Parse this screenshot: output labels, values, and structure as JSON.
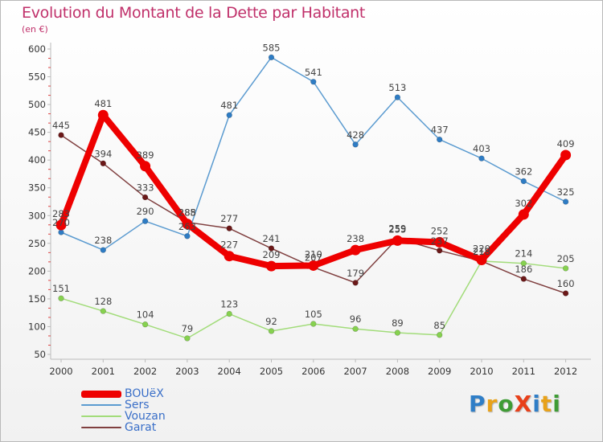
{
  "title": "Evolution du Montant de la Dette par Habitant",
  "subtitle": "(en €)",
  "logo": {
    "text": "ProXiti",
    "letter_colors": [
      "#2f7ec7",
      "#e8a21a",
      "#3f9c35",
      "#e8401a",
      "#2f7ec7",
      "#e8a21a",
      "#3f9c35"
    ]
  },
  "chart_data": {
    "type": "line",
    "x": [
      "2000",
      "2001",
      "2002",
      "2003",
      "2004",
      "2005",
      "2006",
      "2007",
      "2008",
      "2009",
      "2010",
      "2011",
      "2012"
    ],
    "ylim": [
      50,
      600
    ],
    "yticks": [
      50,
      100,
      150,
      200,
      250,
      300,
      350,
      400,
      450,
      500,
      550,
      600
    ],
    "grid": false,
    "legend_position": "bottom-left",
    "series": [
      {
        "name": "Sers",
        "color": "#5b9bd0",
        "marker": "#2e7cc4",
        "values": [
          270,
          238,
          290,
          263,
          481,
          585,
          541,
          428,
          513,
          437,
          403,
          362,
          325
        ]
      },
      {
        "name": "Vouzan",
        "color": "#a2dc7a",
        "marker": "#86d14f",
        "values": [
          151,
          128,
          104,
          79,
          123,
          92,
          105,
          96,
          89,
          85,
          218,
          214,
          205
        ]
      },
      {
        "name": "Garat",
        "color": "#804040",
        "marker": "#6b1818",
        "values": [
          445,
          394,
          333,
          288,
          277,
          241,
          207,
          179,
          259,
          237,
          218,
          186,
          160
        ]
      },
      {
        "name": "BOUëX",
        "color": "#ee0000",
        "marker": "#ee0000",
        "values": [
          283,
          481,
          389,
          285,
          227,
          209,
          210,
          238,
          255,
          252,
          220,
          302,
          409
        ]
      }
    ],
    "legend_order": [
      "BOUëX",
      "Sers",
      "Vouzan",
      "Garat"
    ]
  }
}
